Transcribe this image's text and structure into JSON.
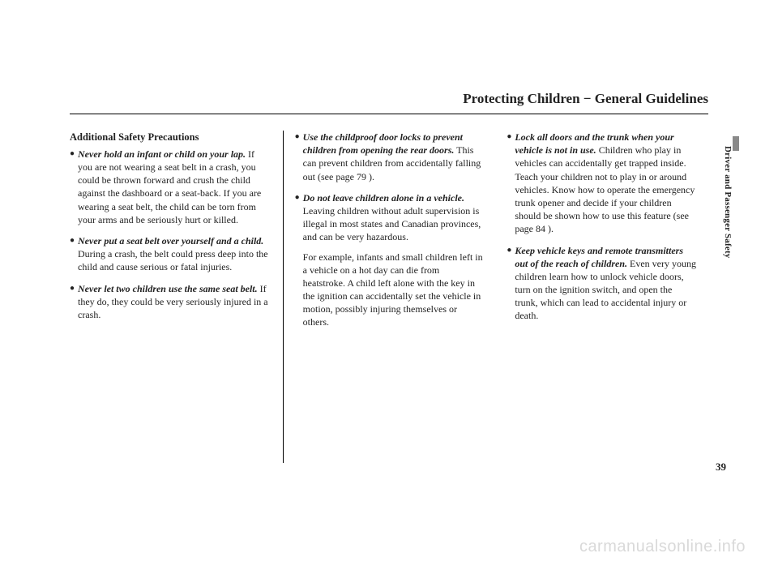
{
  "header": {
    "title": "Protecting Children − General Guidelines"
  },
  "sidebar": {
    "label": "Driver and Passenger Safety"
  },
  "page_number": "39",
  "watermark": "carmanualsonline.info",
  "col1": {
    "section_title": "Additional Safety Precautions",
    "items": [
      {
        "lead": "Never hold an infant or child on your lap.",
        "rest": " If you are not wearing a seat belt in a crash, you could be thrown forward and crush the child against the dashboard or a seat-back. If you are wearing a seat belt, the child can be torn from your arms and be seriously hurt or killed."
      },
      {
        "lead": "Never put a seat belt over yourself and a child.",
        "rest": " During a crash, the belt could press deep into the child and cause serious or fatal injuries."
      },
      {
        "lead": "Never let two children use the same seat belt.",
        "rest": " If they do, they could be very seriously injured in a crash."
      }
    ]
  },
  "col2": {
    "items": [
      {
        "lead": "Use the childproof door locks to prevent children from opening the rear doors.",
        "rest": " This can prevent children from accidentally falling out (see page 79 )."
      },
      {
        "lead": "Do not leave children alone in a vehicle.",
        "rest": " Leaving children without adult supervision is illegal in most states and Canadian provinces, and can be very hazardous.",
        "extra": "For example, infants and small children left in a vehicle on a hot day can die from heatstroke. A child left alone with the key in the ignition can accidentally set the vehicle in motion, possibly injuring themselves or others."
      }
    ]
  },
  "col3": {
    "items": [
      {
        "lead": "Lock all doors and the trunk when your vehicle is not in use.",
        "rest": " Children who play in vehicles can accidentally get trapped inside. Teach your children not to play in or around vehicles. Know how to operate the emergency trunk opener and decide if your children should be shown how to use this feature (see page 84 )."
      },
      {
        "lead": "Keep vehicle keys and remote transmitters out of the reach of children.",
        "rest": " Even very young children learn how to unlock vehicle doors, turn on the ignition switch, and open the trunk, which can lead to accidental injury or death."
      }
    ]
  }
}
